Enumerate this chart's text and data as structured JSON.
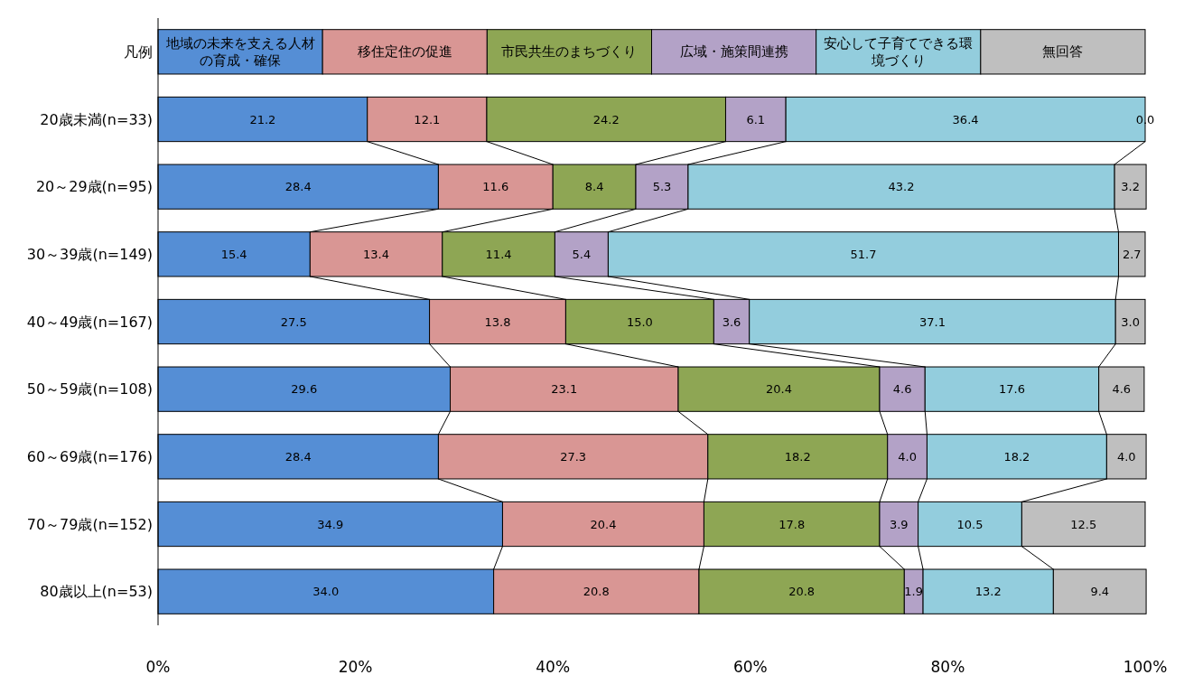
{
  "chart_data": {
    "type": "bar",
    "orientation": "horizontal",
    "stacked": true,
    "legend": "top",
    "legend_title": "凡例",
    "grid": false,
    "categories": [
      "20歳未満(n=33)",
      "20～29歳(n=95)",
      "30～39歳(n=149)",
      "40～49歳(n=167)",
      "50～59歳(n=108)",
      "60～69歳(n=176)",
      "70～79歳(n=152)",
      "80歳以上(n=53)"
    ],
    "series": [
      {
        "name": "地域の未来を支える人材の育成・確保",
        "color": "#558ed5",
        "values": [
          21.2,
          28.4,
          15.4,
          27.5,
          29.6,
          28.4,
          34.9,
          34.0
        ],
        "value_labels": [
          "21.2",
          "28.4",
          "15.4",
          "27.5",
          "29.6",
          "28.4",
          "34.9",
          "34.0"
        ]
      },
      {
        "name": "移住定住の促進",
        "color": "#d99694",
        "values": [
          12.1,
          11.6,
          13.4,
          13.8,
          23.1,
          27.3,
          20.4,
          20.8
        ],
        "value_labels": [
          "12.1",
          "11.6",
          "13.4",
          "13.8",
          "23.1",
          "27.3",
          "20.4",
          "20.8"
        ]
      },
      {
        "name": "市民共生のまちづくり",
        "color": "#8ea654",
        "values": [
          24.2,
          8.4,
          11.4,
          15.0,
          20.4,
          18.2,
          17.8,
          20.8
        ],
        "value_labels": [
          "24.2",
          "8.4",
          "11.4",
          "15.0",
          "20.4",
          "18.2",
          "17.8",
          "20.8"
        ]
      },
      {
        "name": "広域・施策間連携",
        "color": "#b3a2c7",
        "values": [
          6.1,
          5.3,
          5.4,
          3.6,
          4.6,
          4.0,
          3.9,
          1.9
        ],
        "value_labels": [
          "6.1",
          "5.3",
          "5.4",
          "3.6",
          "4.6",
          "4.0",
          "3.9",
          "1.9"
        ]
      },
      {
        "name": "安心して子育てできる環境づくり",
        "color": "#93cddd",
        "values": [
          36.4,
          43.2,
          51.7,
          37.1,
          17.6,
          18.2,
          10.5,
          13.2
        ],
        "value_labels": [
          "36.4",
          "43.2",
          "51.7",
          "37.1",
          "17.6",
          "18.2",
          "10.5",
          "13.2"
        ]
      },
      {
        "name": "無回答",
        "color": "#bfbfbf",
        "values": [
          0.0,
          3.2,
          2.7,
          3.0,
          4.6,
          4.0,
          12.5,
          9.4
        ],
        "value_labels": [
          "0.0",
          "3.2",
          "2.7",
          "3.0",
          "4.6",
          "4.0",
          "12.5",
          "9.4"
        ]
      }
    ],
    "xlim": [
      0,
      100
    ],
    "xticks": [
      {
        "value": 0,
        "label": "0%"
      },
      {
        "value": 20,
        "label": "20%"
      },
      {
        "value": 40,
        "label": "40%"
      },
      {
        "value": 60,
        "label": "60%"
      },
      {
        "value": 80,
        "label": "80%"
      },
      {
        "value": 100,
        "label": "100%"
      }
    ]
  }
}
